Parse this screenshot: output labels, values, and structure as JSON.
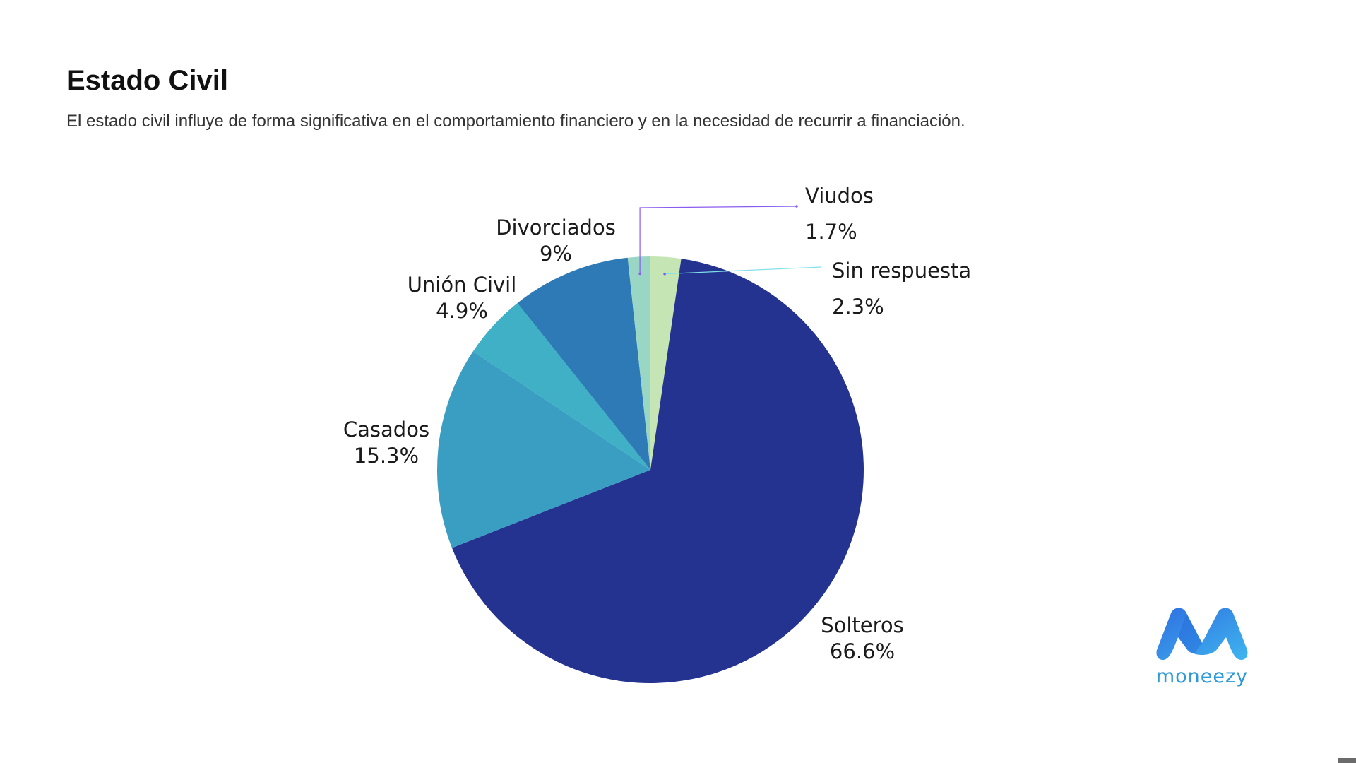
{
  "slide": {
    "title": "Estado Civil",
    "subtitle": "El estado civil influye de forma significativa en el comportamiento financiero y en la necesidad de recurrir a financiación."
  },
  "logo": {
    "text": "moneezy",
    "icon": "moneezy-m-logo-icon",
    "colors": [
      "#2f6fe0",
      "#3fb5ef"
    ]
  },
  "chart_data": {
    "type": "pie",
    "title": "",
    "slices": [
      {
        "name": "Sin respuesta",
        "value": 2.3,
        "label": "2.3%",
        "color": "#c5e6b4"
      },
      {
        "name": "Solteros",
        "value": 66.6,
        "label": "66.6%",
        "color": "#243390"
      },
      {
        "name": "Casados",
        "value": 15.3,
        "label": "15.3%",
        "color": "#3a9ec2"
      },
      {
        "name": "Unión Civil",
        "value": 4.9,
        "label": "4.9%",
        "color": "#3fb0c5"
      },
      {
        "name": "Divorciados",
        "value": 9,
        "label": "9%",
        "color": "#2d7ab7"
      },
      {
        "name": "Viudos",
        "value": 1.7,
        "label": "1.7%",
        "color": "#9ad6c4"
      }
    ],
    "start": "12 o'clock",
    "direction": "clockwise",
    "leader_line_colors": {
      "Viudos": "#8a5cf0",
      "Sin respuesta": "#7fe0e8"
    }
  }
}
